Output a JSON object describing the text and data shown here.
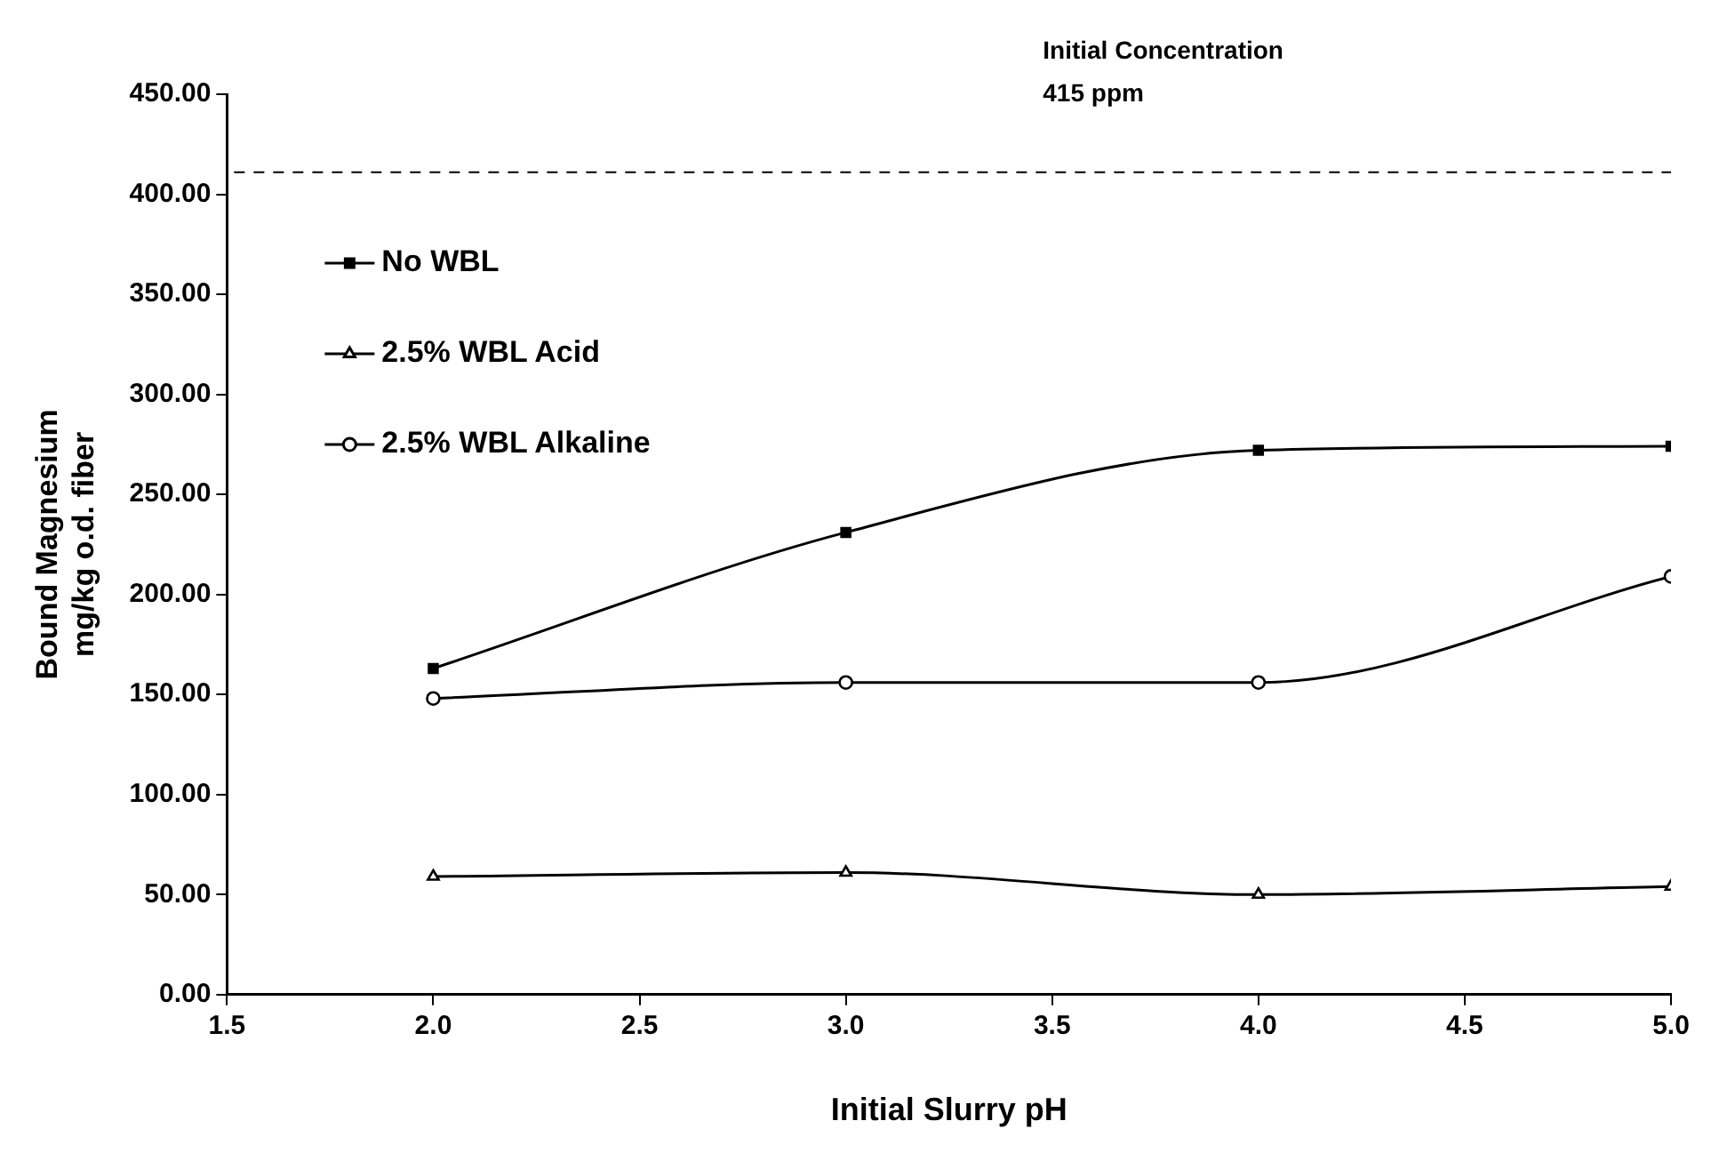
{
  "chart_data": {
    "type": "line",
    "xlabel": "Initial Slurry pH",
    "ylabel": "Bound Magnesium\nmg/kg o.d. fiber",
    "x": [
      2.0,
      3.0,
      4.0,
      5.0
    ],
    "series": [
      {
        "name": "No WBL",
        "color": "#000000",
        "marker": "square",
        "values": [
          163,
          231,
          272,
          274
        ]
      },
      {
        "name": "2.5% WBL Acid",
        "color": "#000000",
        "marker": "triangle",
        "values": [
          59,
          61,
          50,
          54
        ]
      },
      {
        "name": "2.5% WBL Alkaline",
        "color": "#000000",
        "marker": "circle",
        "values": [
          148,
          156,
          156,
          209
        ]
      }
    ],
    "xlim": [
      1.5,
      5.0
    ],
    "xticks": [
      1.5,
      {
        "value": 2,
        "label": "2.0"
      },
      2.5,
      {
        "value": 3,
        "label": "3.0"
      },
      3.5,
      {
        "value": 4,
        "label": "4.0"
      },
      4.5,
      {
        "value": 5,
        "label": "5.0"
      }
    ],
    "ylim": [
      0,
      450
    ],
    "yticks": [
      {
        "value": 0,
        "label": "0.00"
      },
      {
        "value": 50,
        "label": "50.00"
      },
      {
        "value": 100,
        "label": "100.00"
      },
      {
        "value": 150,
        "label": "150.00"
      },
      {
        "value": 200,
        "label": "200.00"
      },
      {
        "value": 250,
        "label": "250.00"
      },
      {
        "value": 300,
        "label": "300.00"
      },
      {
        "value": 350,
        "label": "350.00"
      },
      {
        "value": 400,
        "label": "400.00"
      },
      {
        "value": 450,
        "label": "450.00"
      }
    ],
    "ref_lines": [
      {
        "axis": "y",
        "value": 411,
        "line_style": "dashed",
        "color": "#000000"
      }
    ],
    "annotations": [
      "Initial Concentration",
      "415 ppm"
    ],
    "grid": false,
    "legend": "top left",
    "line_style": "solid"
  }
}
